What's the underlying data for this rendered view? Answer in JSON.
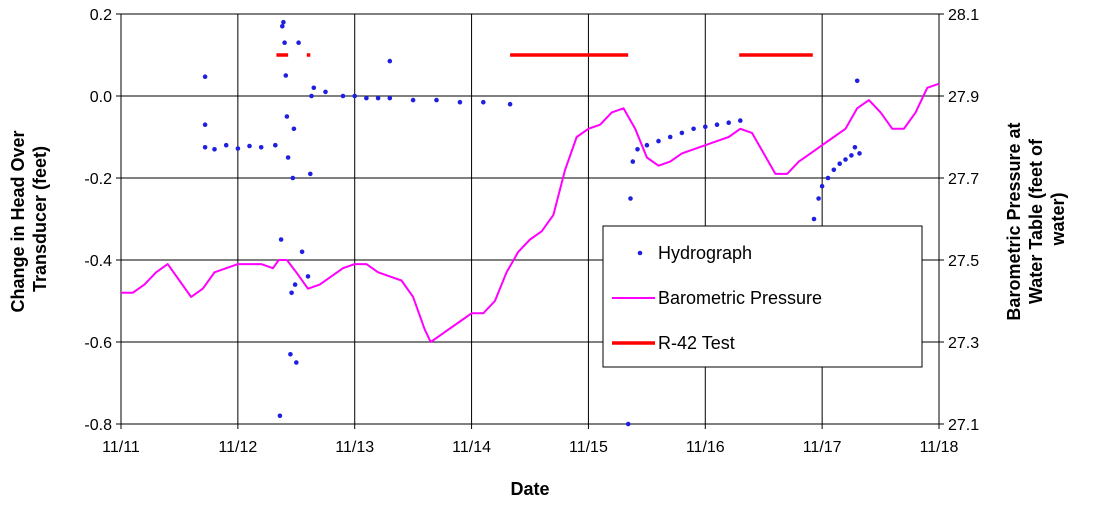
{
  "chart_data": {
    "type": "line",
    "xlabel": "Date",
    "ylabel_left_lines": [
      "Change in Head Over",
      "Transducer (feet)"
    ],
    "ylabel_right_lines": [
      "Barometric Pressure at",
      "Water Table (feet of",
      "water)"
    ],
    "x_ticks": [
      "11/11",
      "11/12",
      "11/13",
      "11/14",
      "11/15",
      "11/16",
      "11/17",
      "11/18"
    ],
    "x_range": [
      11,
      18
    ],
    "y_left_ticks": [
      "0.2",
      "0.0",
      "-0.2",
      "-0.4",
      "-0.6",
      "-0.8"
    ],
    "y_left_range": [
      -0.8,
      0.2
    ],
    "y_right_ticks": [
      "28.1",
      "27.9",
      "27.7",
      "27.5",
      "27.3",
      "27.1"
    ],
    "y_right_range": [
      27.1,
      28.1
    ],
    "grid": true,
    "legend": {
      "position": "center-right",
      "items": [
        {
          "label": "Hydrograph",
          "marker": "dot"
        },
        {
          "label": "Barometric Pressure",
          "marker": "line"
        },
        {
          "label": "R-42 Test",
          "marker": "thick-line"
        }
      ]
    },
    "colors": {
      "Hydrograph": "#1f1fe0",
      "Barometric Pressure": "#ff00ff",
      "R-42 Test": "#ff0000"
    },
    "series": [
      {
        "name": "Hydrograph",
        "axis": "left",
        "style": "markers",
        "points": [
          [
            11.72,
            0.047
          ],
          [
            11.72,
            -0.07
          ],
          [
            11.72,
            -0.125
          ],
          [
            11.8,
            -0.13
          ],
          [
            11.9,
            -0.12
          ],
          [
            12.0,
            -0.128
          ],
          [
            12.1,
            -0.122
          ],
          [
            12.2,
            -0.125
          ],
          [
            12.32,
            -0.12
          ],
          [
            12.36,
            -0.78
          ],
          [
            12.37,
            -0.35
          ],
          [
            12.38,
            0.17
          ],
          [
            12.39,
            0.18
          ],
          [
            12.4,
            0.13
          ],
          [
            12.41,
            0.05
          ],
          [
            12.42,
            -0.05
          ],
          [
            12.43,
            -0.15
          ],
          [
            12.45,
            -0.63
          ],
          [
            12.46,
            -0.48
          ],
          [
            12.47,
            -0.2
          ],
          [
            12.48,
            -0.08
          ],
          [
            12.49,
            -0.46
          ],
          [
            12.5,
            -0.65
          ],
          [
            12.52,
            0.13
          ],
          [
            12.55,
            -0.38
          ],
          [
            12.6,
            -0.44
          ],
          [
            12.62,
            -0.19
          ],
          [
            12.63,
            0.0
          ],
          [
            12.65,
            0.02
          ],
          [
            12.75,
            0.01
          ],
          [
            12.9,
            0.0
          ],
          [
            13.0,
            0.0
          ],
          [
            13.1,
            -0.005
          ],
          [
            13.2,
            -0.005
          ],
          [
            13.3,
            0.085
          ],
          [
            13.3,
            -0.005
          ],
          [
            13.5,
            -0.01
          ],
          [
            13.7,
            -0.01
          ],
          [
            13.9,
            -0.015
          ],
          [
            14.1,
            -0.015
          ],
          [
            14.33,
            -0.02
          ],
          [
            15.34,
            -0.8
          ],
          [
            15.35,
            -0.4
          ],
          [
            15.36,
            -0.25
          ],
          [
            15.38,
            -0.16
          ],
          [
            15.42,
            -0.13
          ],
          [
            15.5,
            -0.12
          ],
          [
            15.6,
            -0.11
          ],
          [
            15.7,
            -0.1
          ],
          [
            15.8,
            -0.09
          ],
          [
            15.9,
            -0.08
          ],
          [
            16.0,
            -0.075
          ],
          [
            16.1,
            -0.07
          ],
          [
            16.2,
            -0.065
          ],
          [
            16.3,
            -0.06
          ],
          [
            16.9,
            -0.38
          ],
          [
            16.93,
            -0.3
          ],
          [
            16.97,
            -0.25
          ],
          [
            17.0,
            -0.22
          ],
          [
            17.05,
            -0.2
          ],
          [
            17.1,
            -0.18
          ],
          [
            17.15,
            -0.165
          ],
          [
            17.2,
            -0.155
          ],
          [
            17.25,
            -0.145
          ],
          [
            17.28,
            -0.125
          ],
          [
            17.3,
            0.037
          ],
          [
            17.32,
            -0.14
          ]
        ]
      },
      {
        "name": "Barometric Pressure",
        "axis": "right",
        "style": "line",
        "points": [
          [
            11.0,
            27.42
          ],
          [
            11.1,
            27.42
          ],
          [
            11.2,
            27.44
          ],
          [
            11.3,
            27.47
          ],
          [
            11.4,
            27.49
          ],
          [
            11.5,
            27.45
          ],
          [
            11.6,
            27.41
          ],
          [
            11.7,
            27.43
          ],
          [
            11.8,
            27.47
          ],
          [
            12.0,
            27.49
          ],
          [
            12.2,
            27.49
          ],
          [
            12.3,
            27.48
          ],
          [
            12.35,
            27.5
          ],
          [
            12.42,
            27.5
          ],
          [
            12.5,
            27.47
          ],
          [
            12.6,
            27.43
          ],
          [
            12.7,
            27.44
          ],
          [
            12.8,
            27.46
          ],
          [
            12.9,
            27.48
          ],
          [
            13.0,
            27.49
          ],
          [
            13.1,
            27.49
          ],
          [
            13.2,
            27.47
          ],
          [
            13.3,
            27.46
          ],
          [
            13.4,
            27.45
          ],
          [
            13.5,
            27.41
          ],
          [
            13.6,
            27.33
          ],
          [
            13.65,
            27.3
          ],
          [
            13.7,
            27.31
          ],
          [
            13.8,
            27.33
          ],
          [
            13.9,
            27.35
          ],
          [
            14.0,
            27.37
          ],
          [
            14.1,
            27.37
          ],
          [
            14.2,
            27.4
          ],
          [
            14.3,
            27.47
          ],
          [
            14.4,
            27.52
          ],
          [
            14.5,
            27.55
          ],
          [
            14.6,
            27.57
          ],
          [
            14.7,
            27.61
          ],
          [
            14.8,
            27.72
          ],
          [
            14.9,
            27.8
          ],
          [
            15.0,
            27.82
          ],
          [
            15.1,
            27.83
          ],
          [
            15.2,
            27.86
          ],
          [
            15.3,
            27.87
          ],
          [
            15.4,
            27.82
          ],
          [
            15.5,
            27.75
          ],
          [
            15.6,
            27.73
          ],
          [
            15.7,
            27.74
          ],
          [
            15.8,
            27.76
          ],
          [
            15.9,
            27.77
          ],
          [
            16.0,
            27.78
          ],
          [
            16.1,
            27.79
          ],
          [
            16.2,
            27.8
          ],
          [
            16.3,
            27.82
          ],
          [
            16.4,
            27.81
          ],
          [
            16.5,
            27.76
          ],
          [
            16.6,
            27.71
          ],
          [
            16.7,
            27.71
          ],
          [
            16.8,
            27.74
          ],
          [
            16.9,
            27.76
          ],
          [
            17.0,
            27.78
          ],
          [
            17.1,
            27.8
          ],
          [
            17.2,
            27.82
          ],
          [
            17.3,
            27.87
          ],
          [
            17.4,
            27.89
          ],
          [
            17.5,
            27.86
          ],
          [
            17.6,
            27.82
          ],
          [
            17.7,
            27.82
          ],
          [
            17.8,
            27.86
          ],
          [
            17.9,
            27.92
          ],
          [
            18.0,
            27.93
          ]
        ]
      },
      {
        "name": "R-42 Test",
        "axis": "left",
        "style": "segments",
        "segments": [
          [
            12.33,
            12.43,
            0.1
          ],
          [
            12.59,
            12.62,
            0.1
          ],
          [
            14.33,
            15.34,
            0.1
          ],
          [
            16.29,
            16.92,
            0.1
          ]
        ]
      }
    ]
  }
}
